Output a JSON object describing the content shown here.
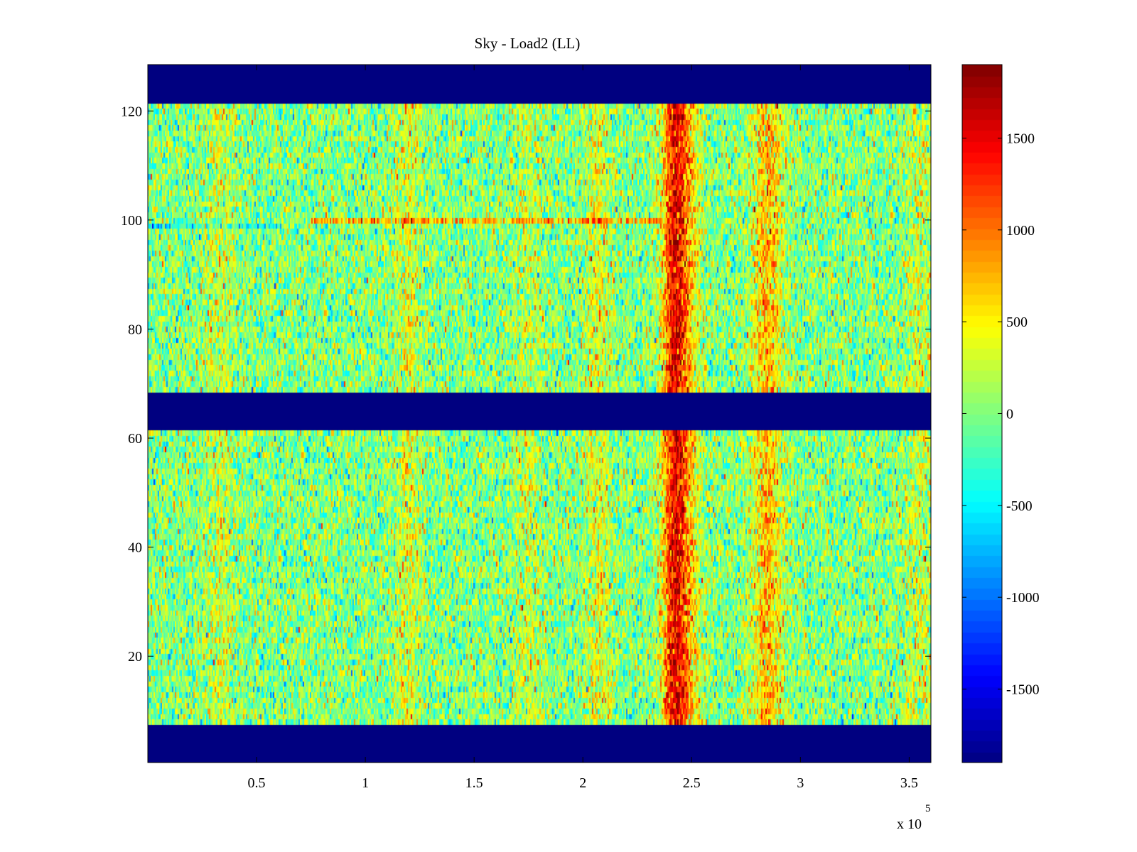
{
  "chart_data": {
    "type": "heatmap",
    "title": "Sky - Load2 (LL)",
    "xlabel": "",
    "ylabel": "",
    "x_exponent_label": "x 10",
    "x_exponent_power": "5",
    "xlim": [
      0,
      360000
    ],
    "ylim": [
      0.5,
      128.5
    ],
    "x_ticks": [
      50000,
      100000,
      150000,
      200000,
      250000,
      300000,
      350000
    ],
    "x_tick_labels": [
      "0.5",
      "1",
      "1.5",
      "2",
      "2.5",
      "3",
      "3.5"
    ],
    "y_ticks": [
      20,
      40,
      60,
      80,
      100,
      120
    ],
    "y_tick_labels": [
      "20",
      "40",
      "60",
      "80",
      "100",
      "120"
    ],
    "colormap": "jet",
    "clim": [
      -1900,
      1900
    ],
    "colorbar_ticks": [
      1500,
      1000,
      500,
      0,
      -500,
      -1000,
      -1500
    ],
    "colorbar_tick_labels": [
      "1500",
      "1000",
      "500",
      "0",
      "-500",
      "-1000",
      "-1500"
    ],
    "masked_rows": [
      [
        1,
        7
      ],
      [
        62,
        68
      ],
      [
        122,
        128
      ]
    ],
    "masked_value": -1900,
    "baseline_value": 0,
    "noise_std": 350,
    "vertical_features": [
      {
        "x": 242000,
        "width": 4000,
        "amplitude": 1100
      },
      {
        "x": 247000,
        "width": 5000,
        "amplitude": 600
      },
      {
        "x": 285000,
        "width": 5000,
        "amplitude": 700
      },
      {
        "x": 120000,
        "width": 4000,
        "amplitude": 350
      },
      {
        "x": 207000,
        "width": 4000,
        "amplitude": 350
      },
      {
        "x": 175000,
        "width": 4000,
        "amplitude": 250
      },
      {
        "x": 33000,
        "width": 5000,
        "amplitude": 250
      },
      {
        "x": 355000,
        "width": 5000,
        "amplitude": 250
      }
    ],
    "horizontal_features": [
      {
        "y": 100,
        "x_range": [
          75000,
          235000
        ],
        "amplitude": 900
      },
      {
        "y": 99,
        "x_range": [
          0,
          60000
        ],
        "amplitude": -500
      }
    ]
  }
}
